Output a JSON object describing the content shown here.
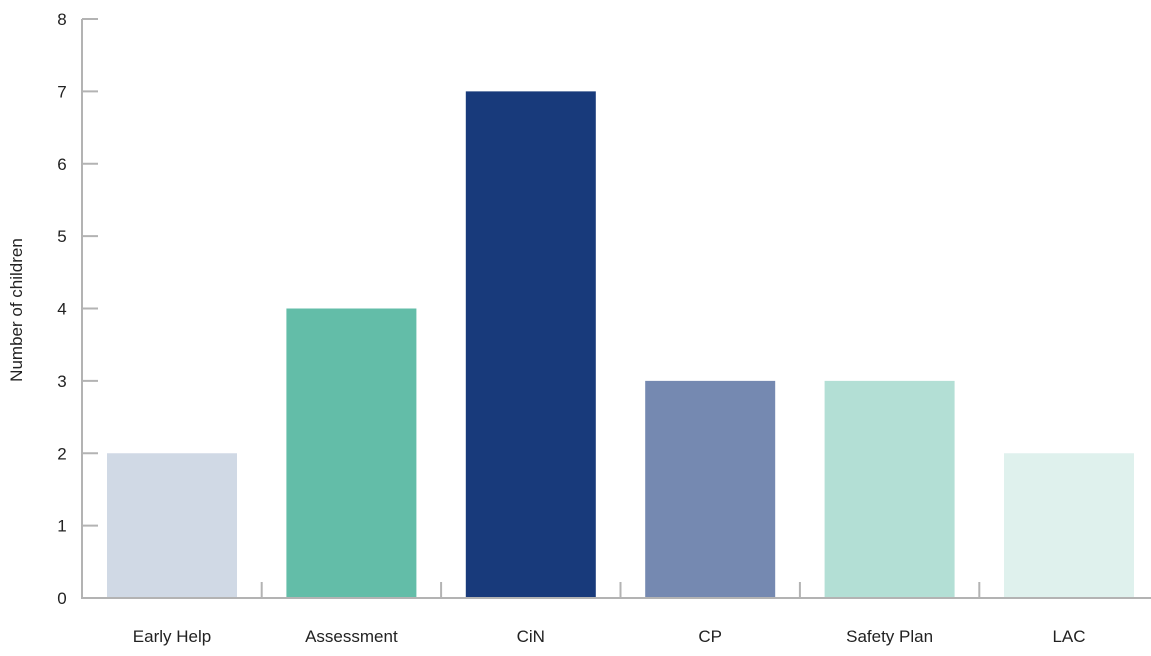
{
  "chart_data": {
    "type": "bar",
    "title": "",
    "xlabel": "",
    "ylabel": "Number of children",
    "ylim": [
      0,
      8
    ],
    "yticks": [
      "0",
      "1",
      "2",
      "3",
      "4",
      "5",
      "6",
      "7",
      "8"
    ],
    "grid": false,
    "legend": "none",
    "categories": [
      "Early Help",
      "Assessment",
      "CiN",
      "CP",
      "Safety Plan",
      "LAC"
    ],
    "values": [
      2,
      4,
      7,
      3,
      3,
      2
    ],
    "colors": [
      "#d0d9e5",
      "#63bda8",
      "#183a7b",
      "#7589b1",
      "#b3dfd5",
      "#dff1ed"
    ],
    "axis_color": "#b3b3b3"
  }
}
